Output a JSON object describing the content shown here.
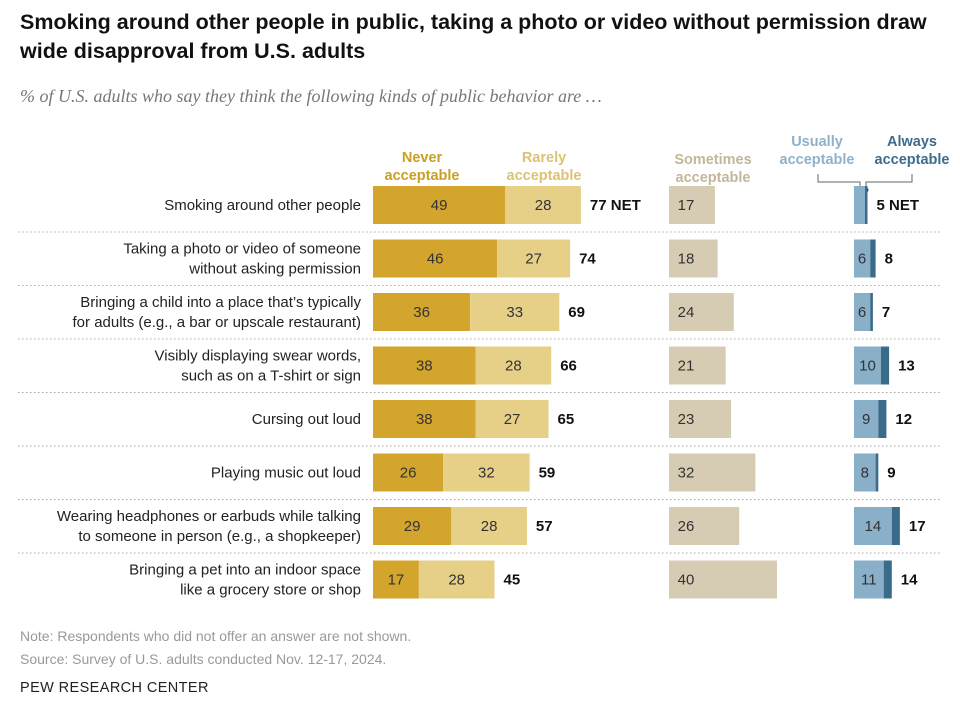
{
  "title": "Smoking around other people in public, taking a photo or video without permission draw wide disapproval from U.S. adults",
  "subtitle": "% of U.S. adults who say they think the following kinds of public behavior are …",
  "note": "Note: Respondents who did not offer an answer are not shown.",
  "source": "Source: Survey of U.S. adults conducted Nov. 12-17, 2024.",
  "brand": "PEW RESEARCH CENTER",
  "colors": {
    "never": "#d3a52c",
    "rarely": "#e6cf87",
    "sometimes": "#d5ccb3",
    "usually": "#8aafc8",
    "always": "#3b6b8b",
    "never_label": "#c9a020",
    "rarely_label": "#dcc273",
    "sometimes_label": "#c2b79a",
    "usually_label": "#8fb1ca",
    "always_label": "#3d6c8c"
  },
  "chart_data": {
    "type": "bar",
    "stacked": true,
    "categories": [
      [
        "Smoking around other people"
      ],
      [
        "Taking a photo or video of someone",
        "without asking permission"
      ],
      [
        "Bringing a child into a place that’s typically",
        "for adults (e.g., a bar or upscale restaurant)"
      ],
      [
        "Visibly displaying swear words,",
        "such as on a T-shirt or sign"
      ],
      [
        "Cursing out loud"
      ],
      [
        "Playing music out loud"
      ],
      [
        "Wearing headphones or earbuds while talking",
        "to someone in person (e.g., a shopkeeper)"
      ],
      [
        "Bringing a pet into an indoor space",
        "like a grocery store or shop"
      ]
    ],
    "series": [
      {
        "name": [
          "Never",
          "acceptable"
        ],
        "key": "never",
        "values": [
          49,
          46,
          36,
          38,
          38,
          26,
          29,
          17
        ]
      },
      {
        "name": [
          "Rarely",
          "acceptable"
        ],
        "key": "rarely",
        "values": [
          28,
          27,
          33,
          28,
          27,
          32,
          28,
          28
        ]
      },
      {
        "name": [
          "Sometimes",
          "acceptable"
        ],
        "key": "sometimes",
        "values": [
          17,
          18,
          24,
          21,
          23,
          32,
          26,
          40
        ]
      },
      {
        "name": [
          "Usually",
          "acceptable"
        ],
        "key": "usually",
        "values": [
          null,
          6,
          6,
          10,
          9,
          8,
          14,
          11
        ]
      },
      {
        "name": [
          "Always",
          "acceptable"
        ],
        "key": "always",
        "values": [
          null,
          2,
          1,
          3,
          3,
          1,
          3,
          3
        ]
      }
    ],
    "net_unacceptable": [
      77,
      74,
      69,
      66,
      65,
      59,
      57,
      45
    ],
    "net_acceptable": [
      5,
      8,
      7,
      13,
      12,
      9,
      17,
      14
    ],
    "net_suffix": "NET"
  }
}
